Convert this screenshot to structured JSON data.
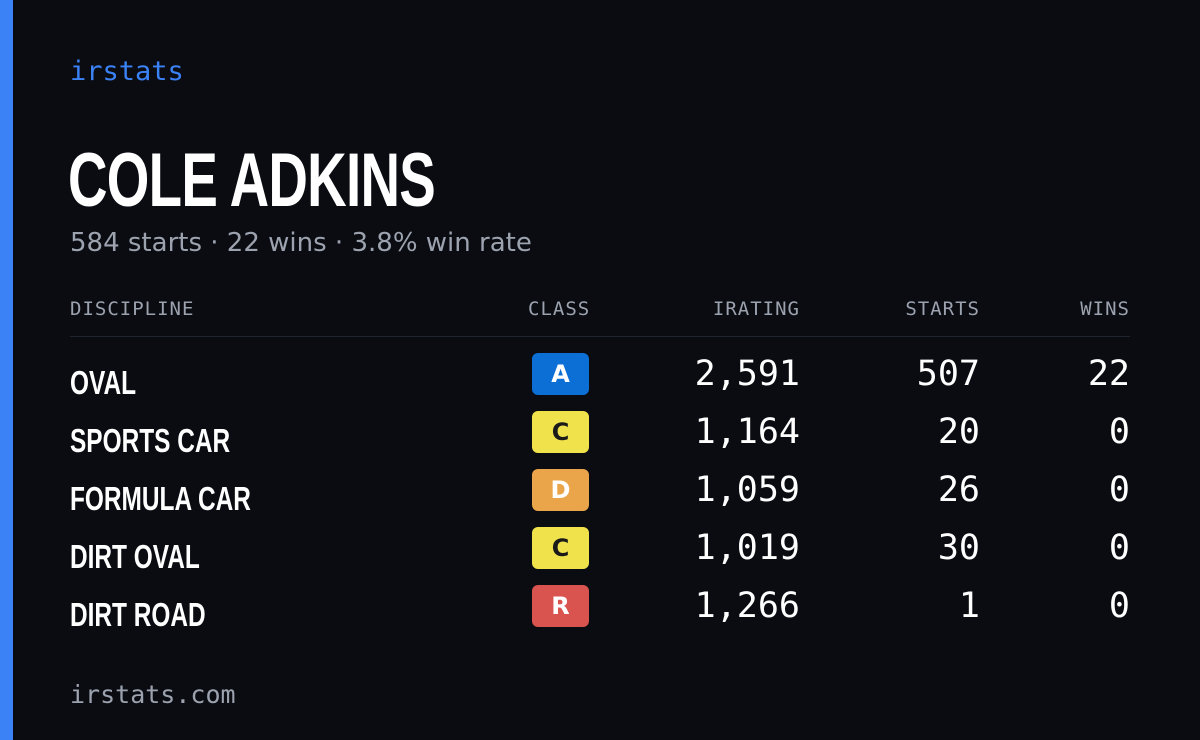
{
  "brand": "irstats",
  "driver": {
    "name": "COLE ADKINS",
    "starts_text": "584 starts",
    "wins_text": "22 wins",
    "winrate_text": "3.8% win rate",
    "separator": " · "
  },
  "table": {
    "headers": {
      "discipline": "DISCIPLINE",
      "class": "CLASS",
      "irating": "IRATING",
      "starts": "STARTS",
      "wins": "WINS"
    },
    "rows": [
      {
        "discipline": "OVAL",
        "class": "A",
        "class_color": "#0b6fd6",
        "class_text_color": "#ffffff",
        "irating": "2,591",
        "starts": "507",
        "wins": "22"
      },
      {
        "discipline": "SPORTS CAR",
        "class": "C",
        "class_color": "#f0e24a",
        "class_text_color": "#1a1a1a",
        "irating": "1,164",
        "starts": "20",
        "wins": "0"
      },
      {
        "discipline": "FORMULA CAR",
        "class": "D",
        "class_color": "#eaa54a",
        "class_text_color": "#ffffff",
        "irating": "1,059",
        "starts": "26",
        "wins": "0"
      },
      {
        "discipline": "DIRT OVAL",
        "class": "C",
        "class_color": "#f0e24a",
        "class_text_color": "#1a1a1a",
        "irating": "1,019",
        "starts": "30",
        "wins": "0"
      },
      {
        "discipline": "DIRT ROAD",
        "class": "R",
        "class_color": "#d9534f",
        "class_text_color": "#ffffff",
        "irating": "1,266",
        "starts": "1",
        "wins": "0"
      }
    ]
  },
  "footer": "irstats.com",
  "colors": {
    "accent": "#3b82f6",
    "background": "#0a0c12",
    "muted": "#9ca3af"
  }
}
